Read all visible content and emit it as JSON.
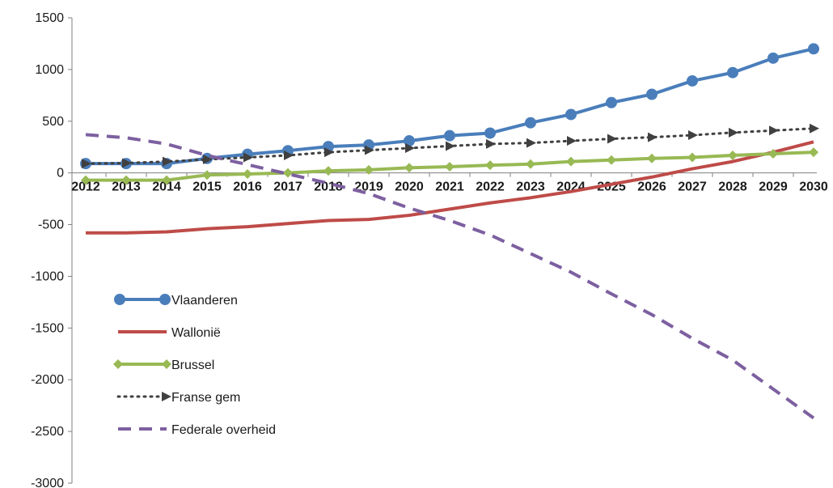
{
  "chart_data": {
    "type": "line",
    "title": "",
    "xlabel": "",
    "ylabel": "",
    "ylim": [
      -3000,
      1500
    ],
    "yticks": [
      1500,
      1000,
      500,
      0,
      -500,
      -1000,
      -1500,
      -2000,
      -2500,
      -3000
    ],
    "grid": false,
    "legend_position": "bottom-left inside plot",
    "x": [
      "2012",
      "2013",
      "2014",
      "2015",
      "2016",
      "2017",
      "2018",
      "2019",
      "2020",
      "2021",
      "2022",
      "2023",
      "2024",
      "2025",
      "2026",
      "2027",
      "2028",
      "2029",
      "2030"
    ],
    "series": [
      {
        "name": "Vlaanderen",
        "color": "#4a7ebb",
        "line_style": "solid",
        "marker": "circle",
        "values": [
          90,
          90,
          90,
          140,
          180,
          215,
          255,
          270,
          310,
          360,
          385,
          485,
          565,
          680,
          760,
          890,
          970,
          1110,
          1200
        ]
      },
      {
        "name": "Wallonië",
        "color": "#be4b48",
        "line_style": "solid",
        "marker": "none",
        "values": [
          -580,
          -580,
          -570,
          -540,
          -520,
          -490,
          -460,
          -450,
          -410,
          -350,
          -290,
          -240,
          -180,
          -110,
          -40,
          40,
          110,
          200,
          300
        ]
      },
      {
        "name": "Brussel",
        "color": "#98b954",
        "line_style": "solid",
        "marker": "diamond",
        "values": [
          -70,
          -70,
          -70,
          -20,
          -10,
          0,
          20,
          30,
          50,
          60,
          75,
          85,
          110,
          125,
          140,
          150,
          170,
          185,
          200
        ]
      },
      {
        "name": "Franse gem",
        "color": "#404040",
        "line_style": "dotted",
        "marker": "triangle",
        "values": [
          90,
          95,
          110,
          130,
          150,
          170,
          200,
          220,
          240,
          260,
          280,
          290,
          310,
          330,
          345,
          365,
          390,
          410,
          430
        ]
      },
      {
        "name": "Federale overheid",
        "color": "#7d60a0",
        "line_style": "dashed",
        "marker": "none",
        "values": [
          370,
          340,
          280,
          170,
          80,
          -10,
          -100,
          -200,
          -340,
          -460,
          -600,
          -780,
          -960,
          -1170,
          -1370,
          -1600,
          -1810,
          -2090,
          -2370
        ]
      }
    ]
  }
}
